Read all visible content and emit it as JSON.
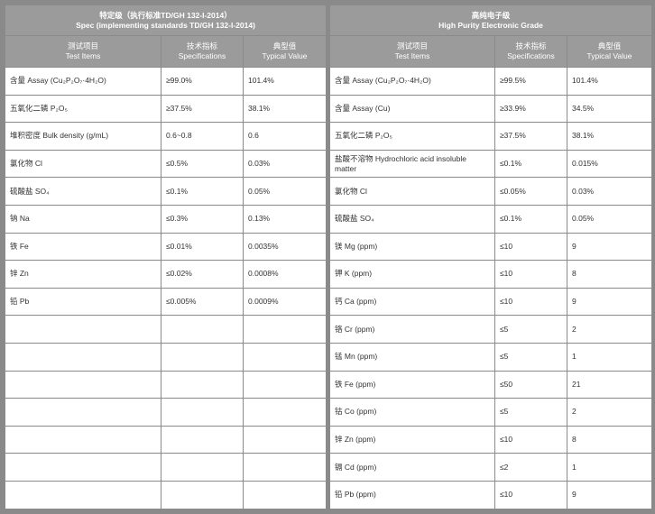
{
  "left": {
    "title_cn": "特定级（执行标准TD/GH 132-I-2014）",
    "title_en": "Spec (implementing standards TD/GH 132-I-2014)",
    "columns": [
      {
        "cn": "测试项目",
        "en": "Test Items"
      },
      {
        "cn": "技术指标",
        "en": "Specifications"
      },
      {
        "cn": "典型值",
        "en": "Typical Value"
      }
    ],
    "rows": [
      [
        "含量 Assay (Cu₂P₂O₇·4H₂O)",
        "≥99.0%",
        "101.4%"
      ],
      [
        "五氧化二磷 P₂O₅",
        "≥37.5%",
        "38.1%"
      ],
      [
        "堆积密度 Bulk density (g/mL)",
        "0.6~0.8",
        "0.6"
      ],
      [
        "氯化物 Cl",
        "≤0.5%",
        "0.03%"
      ],
      [
        "硫酸盐 SO₄",
        "≤0.1%",
        "0.05%"
      ],
      [
        "钠 Na",
        "≤0.3%",
        "0.13%"
      ],
      [
        "铁 Fe",
        "≤0.01%",
        "0.0035%"
      ],
      [
        "锌 Zn",
        "≤0.02%",
        "0.0008%"
      ],
      [
        "铅 Pb",
        "≤0.005%",
        "0.0009%"
      ],
      [
        "",
        "",
        ""
      ],
      [
        "",
        "",
        ""
      ],
      [
        "",
        "",
        ""
      ],
      [
        "",
        "",
        ""
      ],
      [
        "",
        "",
        ""
      ],
      [
        "",
        "",
        ""
      ],
      [
        "",
        "",
        ""
      ]
    ]
  },
  "right": {
    "title_cn": "高纯电子级",
    "title_en": "High Purity Electronic Grade",
    "columns": [
      {
        "cn": "测试项目",
        "en": "Test Items"
      },
      {
        "cn": "技术指标",
        "en": "Specifications"
      },
      {
        "cn": "典型值",
        "en": "Typical Value"
      }
    ],
    "rows": [
      [
        "含量 Assay (Cu₂P₂O₇·4H₂O)",
        "≥99.5%",
        "101.4%"
      ],
      [
        "含量 Assay (Cu)",
        "≥33.9%",
        "34.5%"
      ],
      [
        "五氧化二磷 P₂O₅",
        "≥37.5%",
        "38.1%"
      ],
      [
        "盐酸不溶物 Hydrochloric acid insoluble matter",
        "≤0.1%",
        "0.015%"
      ],
      [
        "氯化物 Cl",
        "≤0.05%",
        "0.03%"
      ],
      [
        "硫酸盐 SO₄",
        "≤0.1%",
        "0.05%"
      ],
      [
        "镁 Mg (ppm)",
        "≤10",
        "9"
      ],
      [
        "钾 K (ppm)",
        "≤10",
        "8"
      ],
      [
        "钙 Ca (ppm)",
        "≤10",
        "9"
      ],
      [
        "铬 Cr (ppm)",
        "≤5",
        "2"
      ],
      [
        "锰 Mn (ppm)",
        "≤5",
        "1"
      ],
      [
        "铁 Fe (ppm)",
        "≤50",
        "21"
      ],
      [
        "钴 Co (ppm)",
        "≤5",
        "2"
      ],
      [
        "锌 Zn (ppm)",
        "≤10",
        "8"
      ],
      [
        "镉 Cd (ppm)",
        "≤2",
        "1"
      ],
      [
        "铅 Pb (ppm)",
        "≤10",
        "9"
      ]
    ]
  }
}
